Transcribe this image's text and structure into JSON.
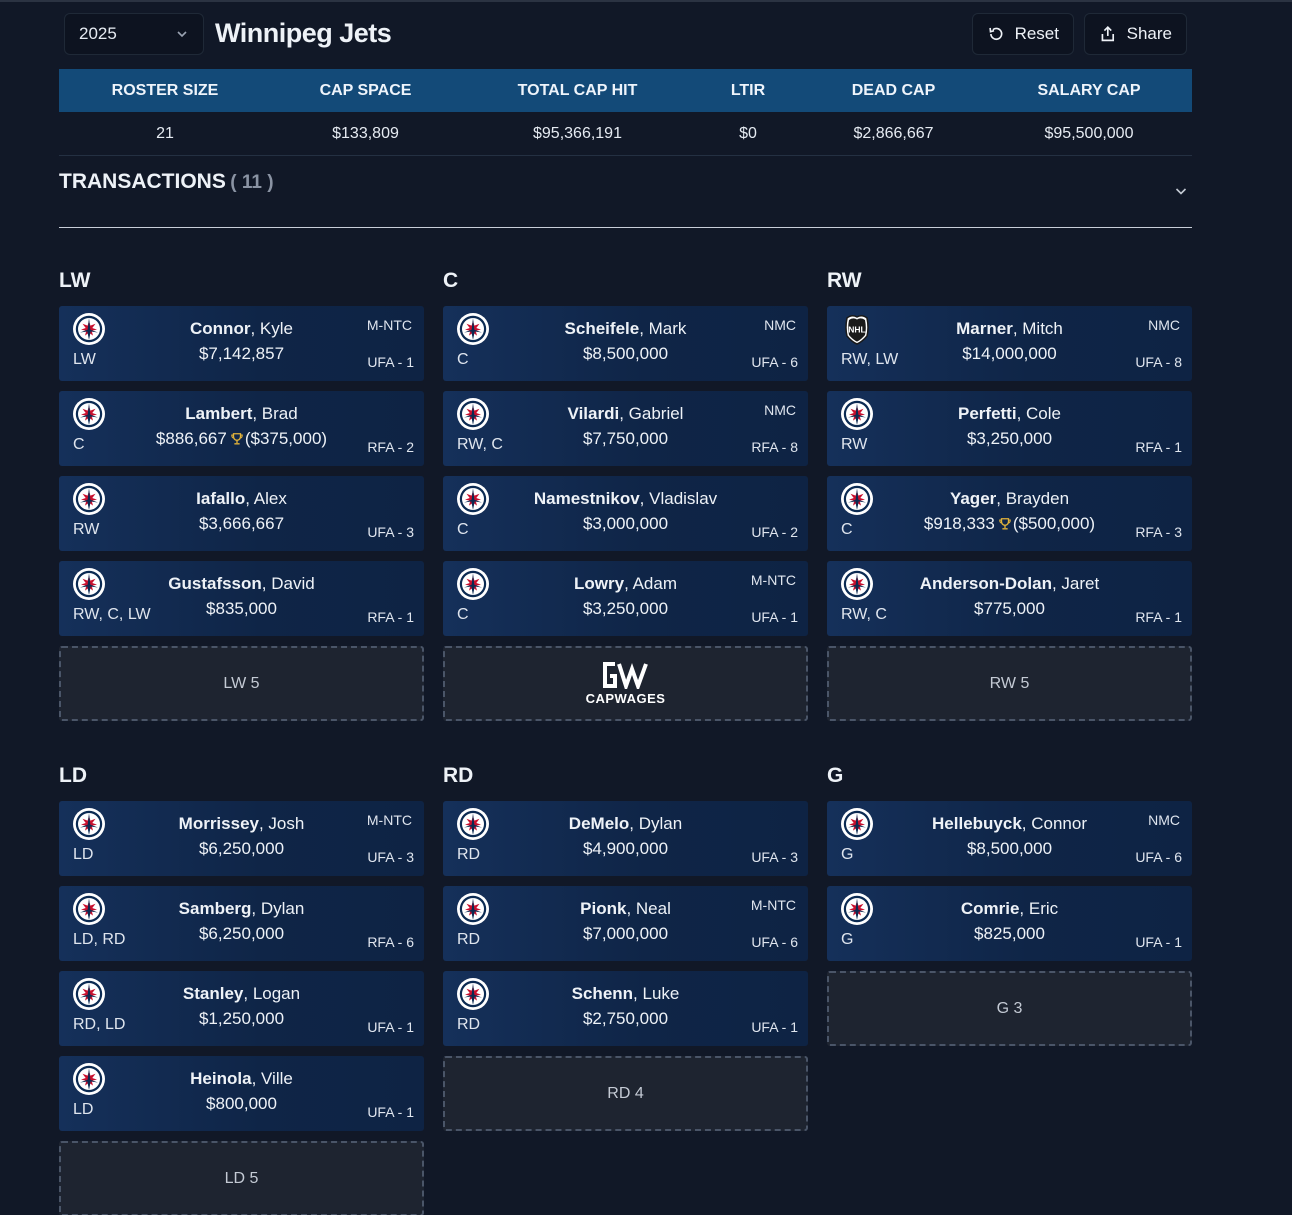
{
  "header": {
    "year": "2025",
    "team_name": "Winnipeg Jets",
    "reset_label": "Reset",
    "share_label": "Share"
  },
  "summary": {
    "headers": [
      "ROSTER SIZE",
      "CAP SPACE",
      "TOTAL CAP HIT",
      "LTIR",
      "DEAD CAP",
      "SALARY CAP"
    ],
    "values": [
      "21",
      "$133,809",
      "$95,366,191",
      "$0",
      "$2,866,667",
      "$95,500,000"
    ]
  },
  "transactions": {
    "label": "TRANSACTIONS",
    "count": "( 11 )"
  },
  "groups": {
    "lw": {
      "title": "LW",
      "players": [
        {
          "last": "Connor",
          "first": ", Kyle",
          "cap": "$7,142,857",
          "bonus": "",
          "pos": "LW",
          "clause": "M-NTC",
          "contract": "UFA - 1",
          "logo": "jets-logo"
        },
        {
          "last": "Lambert",
          "first": ", Brad",
          "cap": "$886,667",
          "bonus": "($375,000)",
          "pos": "C",
          "clause": "",
          "contract": "RFA - 2",
          "logo": "jets-logo"
        },
        {
          "last": "Iafallo",
          "first": ", Alex",
          "cap": "$3,666,667",
          "bonus": "",
          "pos": "RW",
          "clause": "",
          "contract": "UFA - 3",
          "logo": "jets-logo"
        },
        {
          "last": "Gustafsson",
          "first": ", David",
          "cap": "$835,000",
          "bonus": "",
          "pos": "RW, C, LW",
          "clause": "",
          "contract": "RFA - 1",
          "logo": "jets-logo"
        }
      ],
      "slot": "LW 5"
    },
    "c": {
      "title": "C",
      "players": [
        {
          "last": "Scheifele",
          "first": ", Mark",
          "cap": "$8,500,000",
          "bonus": "",
          "pos": "C",
          "clause": "NMC",
          "contract": "UFA - 6",
          "logo": "jets-logo"
        },
        {
          "last": "Vilardi",
          "first": ", Gabriel",
          "cap": "$7,750,000",
          "bonus": "",
          "pos": "RW, C",
          "clause": "NMC",
          "contract": "RFA - 8",
          "logo": "jets-logo"
        },
        {
          "last": "Namestnikov",
          "first": ", Vladislav",
          "cap": "$3,000,000",
          "bonus": "",
          "pos": "C",
          "clause": "",
          "contract": "UFA - 2",
          "logo": "jets-logo"
        },
        {
          "last": "Lowry",
          "first": ", Adam",
          "cap": "$3,250,000",
          "bonus": "",
          "pos": "C",
          "clause": "M-NTC",
          "contract": "UFA - 1",
          "logo": "jets-logo"
        }
      ],
      "brand": "CAPWAGES"
    },
    "rw": {
      "title": "RW",
      "players": [
        {
          "last": "Marner",
          "first": ", Mitch",
          "cap": "$14,000,000",
          "bonus": "",
          "pos": "RW, LW",
          "clause": "NMC",
          "contract": "UFA - 8",
          "logo": "nhl-logo"
        },
        {
          "last": "Perfetti",
          "first": ", Cole",
          "cap": "$3,250,000",
          "bonus": "",
          "pos": "RW",
          "clause": "",
          "contract": "RFA - 1",
          "logo": "jets-logo"
        },
        {
          "last": "Yager",
          "first": ", Brayden",
          "cap": "$918,333",
          "bonus": "($500,000)",
          "pos": "C",
          "clause": "",
          "contract": "RFA - 3",
          "logo": "jets-logo"
        },
        {
          "last": "Anderson-Dolan",
          "first": ", Jaret",
          "cap": "$775,000",
          "bonus": "",
          "pos": "RW, C",
          "clause": "",
          "contract": "RFA - 1",
          "logo": "jets-logo"
        }
      ],
      "slot": "RW 5"
    },
    "ld": {
      "title": "LD",
      "players": [
        {
          "last": "Morrissey",
          "first": ", Josh",
          "cap": "$6,250,000",
          "bonus": "",
          "pos": "LD",
          "clause": "M-NTC",
          "contract": "UFA - 3",
          "logo": "jets-logo"
        },
        {
          "last": "Samberg",
          "first": ", Dylan",
          "cap": "$6,250,000",
          "bonus": "",
          "pos": "LD, RD",
          "clause": "",
          "contract": "RFA - 6",
          "logo": "jets-logo"
        },
        {
          "last": "Stanley",
          "first": ", Logan",
          "cap": "$1,250,000",
          "bonus": "",
          "pos": "RD, LD",
          "clause": "",
          "contract": "UFA - 1",
          "logo": "jets-logo"
        },
        {
          "last": "Heinola",
          "first": ", Ville",
          "cap": "$800,000",
          "bonus": "",
          "pos": "LD",
          "clause": "",
          "contract": "UFA - 1",
          "logo": "jets-logo"
        }
      ],
      "slot": "LD 5"
    },
    "rd": {
      "title": "RD",
      "players": [
        {
          "last": "DeMelo",
          "first": ", Dylan",
          "cap": "$4,900,000",
          "bonus": "",
          "pos": "RD",
          "clause": "",
          "contract": "UFA - 3",
          "logo": "jets-logo"
        },
        {
          "last": "Pionk",
          "first": ", Neal",
          "cap": "$7,000,000",
          "bonus": "",
          "pos": "RD",
          "clause": "M-NTC",
          "contract": "UFA - 6",
          "logo": "jets-logo"
        },
        {
          "last": "Schenn",
          "first": ", Luke",
          "cap": "$2,750,000",
          "bonus": "",
          "pos": "RD",
          "clause": "",
          "contract": "UFA - 1",
          "logo": "jets-logo"
        }
      ],
      "slot": "RD 4"
    },
    "g": {
      "title": "G",
      "players": [
        {
          "last": "Hellebuyck",
          "first": ", Connor",
          "cap": "$8,500,000",
          "bonus": "",
          "pos": "G",
          "clause": "NMC",
          "contract": "UFA - 6",
          "logo": "jets-logo"
        },
        {
          "last": "Comrie",
          "first": ", Eric",
          "cap": "$825,000",
          "bonus": "",
          "pos": "G",
          "clause": "",
          "contract": "UFA - 1",
          "logo": "jets-logo"
        }
      ],
      "slot": "G 3"
    }
  }
}
